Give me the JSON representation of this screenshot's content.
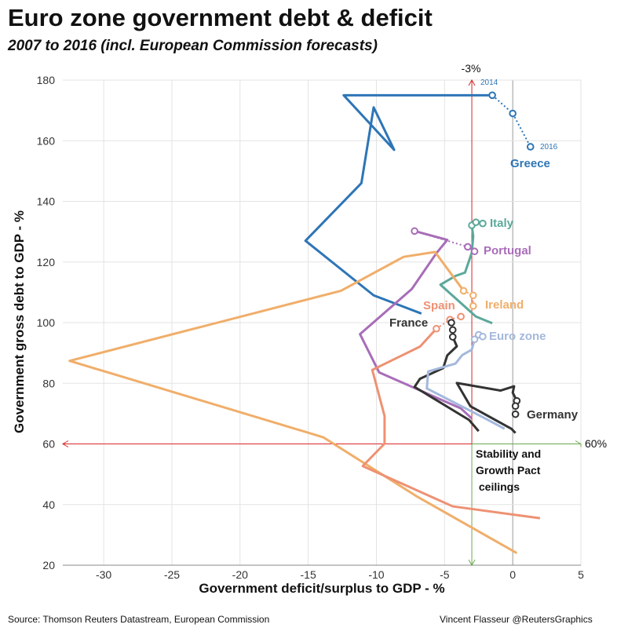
{
  "title": "Euro zone government debt & deficit",
  "subtitle": "2007 to 2016 (incl. European Commission forecasts)",
  "source": "Source: Thomson Reuters Datastream, European Commission",
  "credit": "Vincent Flasseur @ReutersGraphics",
  "annotations": {
    "minus3_label": "-3%",
    "sixty_label": "60%",
    "ceilings_note": "Stability and\nGrowth Pact\n ceilings",
    "greece_2014": "2014",
    "greece_2016": "2016"
  },
  "chart_data": {
    "type": "line",
    "title": "Euro zone government debt & deficit",
    "subtitle": "2007 to 2016 (incl. European Commission forecasts)",
    "xlabel": "Government deficit/surplus to GDP - %",
    "ylabel": "Government gross debt to GDP - %",
    "xlim": [
      -33,
      5
    ],
    "ylim": [
      20,
      180
    ],
    "xticks": [
      -30,
      -25,
      -20,
      -15,
      -10,
      -5,
      0,
      5
    ],
    "yticks": [
      20,
      40,
      60,
      80,
      100,
      120,
      140,
      160,
      180
    ],
    "grid": true,
    "reference_lines": [
      {
        "axis": "x",
        "value": -3,
        "label": "-3%",
        "color": "#d62728"
      },
      {
        "axis": "y",
        "value": 60,
        "label": "60%",
        "color": "#d62728"
      }
    ],
    "series": [
      {
        "name": "Greece",
        "color": "#2e75b6",
        "x": [
          -6.7,
          -10.2,
          -15.2,
          -11.1,
          -10.2,
          -8.7,
          -12.4,
          -1.5,
          0.0,
          1.3
        ],
        "y": [
          103,
          109,
          127,
          146,
          171,
          157,
          175,
          175,
          169,
          158
        ]
      },
      {
        "name": "Italy",
        "color": "#5ba89a",
        "x": [
          -1.5,
          -2.7,
          -5.3,
          -4.2,
          -3.5,
          -3.0,
          -2.9,
          -3.0,
          -2.7,
          -2.2
        ],
        "y": [
          99.8,
          102,
          112.5,
          115.4,
          116.5,
          123.1,
          128.5,
          132.1,
          133.1,
          132.7
        ]
      },
      {
        "name": "Portugal",
        "color": "#a86db8",
        "x": [
          -3.0,
          -3.8,
          -9.8,
          -11.2,
          -7.4,
          -5.6,
          -4.8,
          -7.2,
          -3.3,
          -2.8
        ],
        "y": [
          68.4,
          71.7,
          83.6,
          96.2,
          111.1,
          122.9,
          127.3,
          130.2,
          125.0,
          123.5
        ]
      },
      {
        "name": "Ireland",
        "color": "#f0ae6a",
        "x": [
          0.3,
          -7.0,
          -13.9,
          -32.5,
          -12.6,
          -8.0,
          -5.7,
          -3.6,
          -2.9,
          -2.9
        ],
        "y": [
          24.0,
          42.6,
          62.2,
          87.4,
          110.5,
          121.7,
          123.3,
          110.5,
          109.0,
          105.5
        ]
      },
      {
        "name": "Spain",
        "color": "#ee9173",
        "x": [
          2.0,
          -4.4,
          -11.0,
          -9.4,
          -9.4,
          -10.3,
          -6.8,
          -5.6,
          -4.6,
          -3.8
        ],
        "y": [
          35.5,
          39.4,
          52.7,
          60.1,
          69.2,
          84.4,
          92.1,
          98.0,
          101.0,
          102.0
        ]
      },
      {
        "name": "France",
        "color": "#333333",
        "x": [
          -2.5,
          -3.2,
          -7.2,
          -6.8,
          -5.1,
          -4.8,
          -4.1,
          -4.4,
          -4.4,
          -4.5
        ],
        "y": [
          64.2,
          67.9,
          78.8,
          81.5,
          85.0,
          89.2,
          92.2,
          95.3,
          97.6,
          100.0
        ]
      },
      {
        "name": "Germany",
        "color": "#333333",
        "x": [
          0.2,
          -0.1,
          -3.1,
          -4.1,
          -0.9,
          0.1,
          0.0,
          0.3,
          0.2,
          0.2
        ],
        "y": [
          63.6,
          65.0,
          72.4,
          80.1,
          77.6,
          79.0,
          76.9,
          74.2,
          72.5,
          69.8
        ]
      },
      {
        "name": "Euro zone",
        "color": "#a4b8dc",
        "x": [
          -0.6,
          -2.1,
          -6.3,
          -6.2,
          -4.2,
          -3.7,
          -3.0,
          -2.8,
          -2.5,
          -2.2
        ],
        "y": [
          65.0,
          68.6,
          78.3,
          83.9,
          86.5,
          89.3,
          91.1,
          94.5,
          96.0,
          95.4
        ]
      }
    ],
    "greece_forecast_labels": [
      {
        "year": "2014",
        "x": -1.5,
        "y": 175
      },
      {
        "year": "2016",
        "x": 1.3,
        "y": 158
      }
    ]
  }
}
